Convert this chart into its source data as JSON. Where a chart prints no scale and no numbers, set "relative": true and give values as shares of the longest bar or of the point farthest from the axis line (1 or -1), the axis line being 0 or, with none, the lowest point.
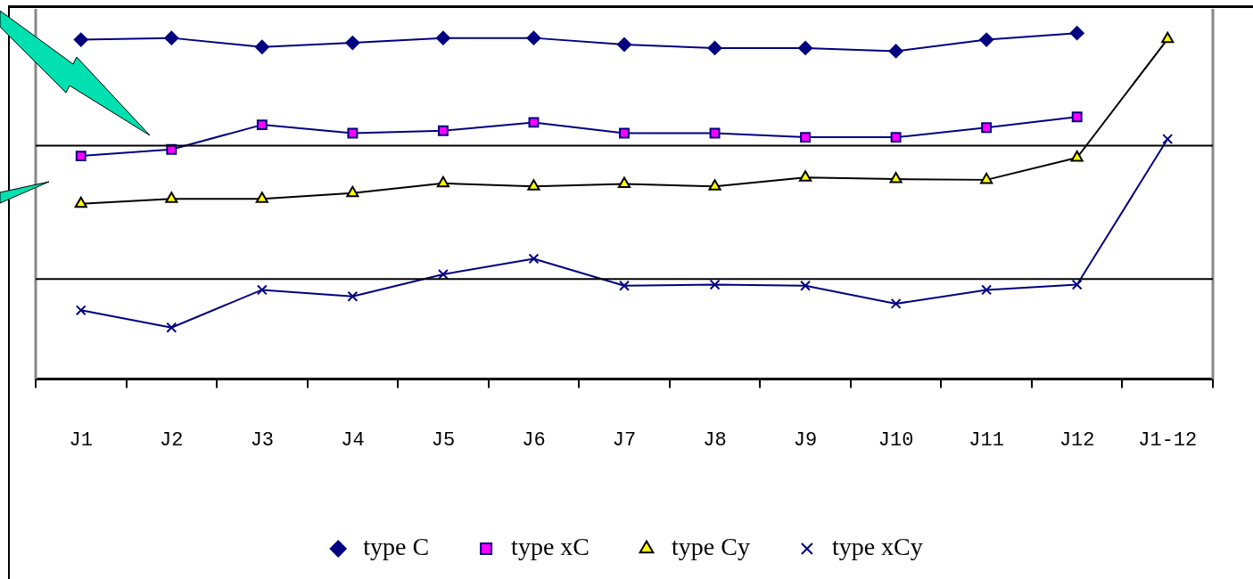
{
  "chart_data": {
    "type": "line",
    "relative": true,
    "categories": [
      "J1",
      "J2",
      "J3",
      "J4",
      "J5",
      "J6",
      "J7",
      "J8",
      "J9",
      "J10",
      "J11",
      "J12",
      "J1-12"
    ],
    "series": [
      {
        "name": "type C",
        "color": "#000080",
        "marker": "diamond",
        "values": [
          0.981,
          0.986,
          0.96,
          0.972,
          0.986,
          0.986,
          0.967,
          0.957,
          0.957,
          0.948,
          0.981,
          1,
          null
        ]
      },
      {
        "name": "type xC",
        "color": "#000080",
        "marker": "square",
        "values": [
          0.645,
          0.664,
          0.735,
          0.711,
          0.718,
          0.742,
          0.711,
          0.711,
          0.699,
          0.699,
          0.727,
          0.758,
          null
        ]
      },
      {
        "name": "type Cy",
        "color": "#000000",
        "marker": "triangle",
        "values": [
          0.507,
          0.521,
          0.521,
          0.538,
          0.566,
          0.557,
          0.564,
          0.557,
          0.583,
          0.578,
          0.576,
          0.64,
          0.983
        ]
      },
      {
        "name": "type xCy",
        "color": "#000080",
        "marker": "cross",
        "values": [
          0.199,
          0.149,
          0.258,
          0.239,
          0.303,
          0.348,
          0.27,
          0.273,
          0.27,
          0.218,
          0.258,
          0.273,
          0.694
        ]
      }
    ],
    "ref_lines": [
      {
        "axis": "y",
        "value": 0.675,
        "color": "#000000"
      },
      {
        "axis": "y",
        "value": 0.289,
        "color": "#000000"
      }
    ],
    "legend": "bottom",
    "grid": false,
    "line_style": "solid"
  }
}
